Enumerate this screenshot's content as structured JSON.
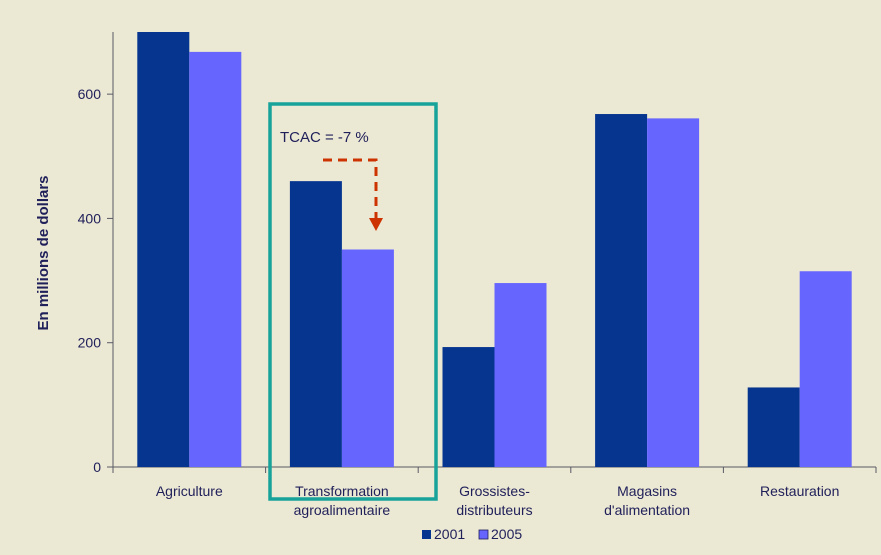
{
  "chart_data": {
    "type": "bar",
    "ylabel": "En millions de dollars",
    "ylim": [
      0,
      700
    ],
    "yticks": [
      0,
      200,
      400,
      600
    ],
    "categories": [
      [
        "Agriculture"
      ],
      [
        "Transformation",
        "agroalimentaire"
      ],
      [
        "Grossistes-",
        "distributeurs"
      ],
      [
        "Magasins",
        "d'alimentation"
      ],
      [
        "Restauration"
      ]
    ],
    "series": [
      {
        "name": "2001",
        "color": "#06358f",
        "values": [
          700,
          460,
          193,
          568,
          128
        ]
      },
      {
        "name": "2005",
        "color": "#6666ff",
        "values": [
          668,
          350,
          296,
          561,
          315
        ]
      }
    ],
    "legend_position": "bottom",
    "annotation": {
      "text": "TCAC = -7 %",
      "category_index": 1,
      "box_color": "#17a39a",
      "arrow_color": "#cc3300"
    }
  }
}
